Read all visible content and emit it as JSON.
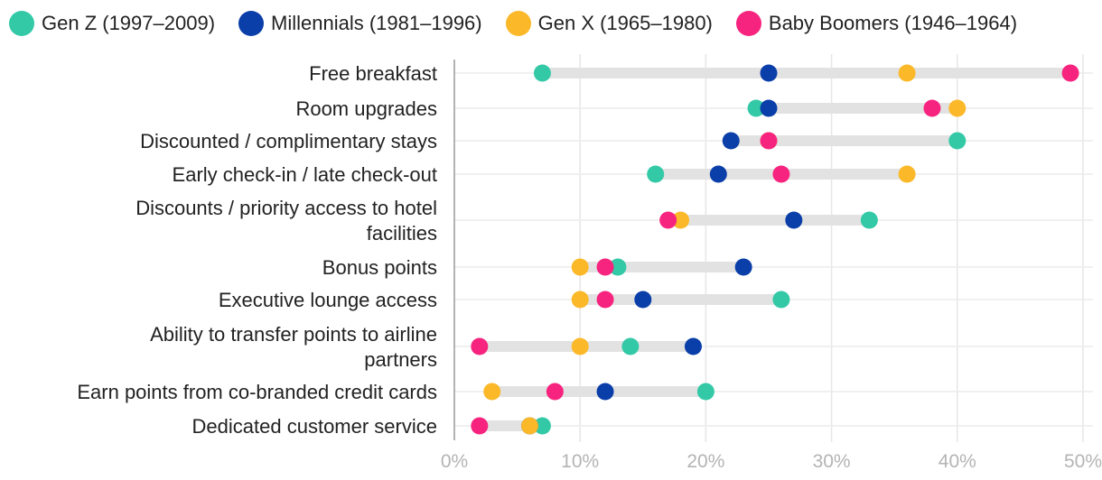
{
  "chart_data": {
    "type": "dot-range",
    "title": "",
    "xlabel": "",
    "ylabel": "",
    "xlim": [
      0,
      50
    ],
    "ticks": [
      0,
      10,
      20,
      30,
      40,
      50
    ],
    "tick_labels": [
      "0%",
      "10%",
      "20%",
      "30%",
      "40%",
      "50%"
    ],
    "grid": true,
    "legend_position": "top",
    "categories": [
      [
        "Free breakfast"
      ],
      [
        "Room upgrades"
      ],
      [
        "Discounted / complimentary stays"
      ],
      [
        "Early check-in / late check-out"
      ],
      [
        "Discounts / priority access to hotel",
        "facilities"
      ],
      [
        "Bonus points"
      ],
      [
        "Executive lounge access"
      ],
      [
        "Ability to transfer points to airline",
        "partners"
      ],
      [
        "Earn points from co-branded credit cards"
      ],
      [
        "Dedicated customer service"
      ]
    ],
    "series": [
      {
        "name": "Gen Z (1997–2009)",
        "color": "#33c9a7",
        "values": [
          7,
          24,
          40,
          16,
          33,
          13,
          26,
          14,
          20,
          7
        ]
      },
      {
        "name": "Millennials (1981–1996)",
        "color": "#0a3ea8",
        "values": [
          25,
          25,
          22,
          21,
          27,
          23,
          15,
          19,
          12,
          6
        ]
      },
      {
        "name": "Gen X (1965–1980)",
        "color": "#fbb829",
        "values": [
          36,
          40,
          25,
          36,
          18,
          10,
          10,
          10,
          3,
          6
        ]
      },
      {
        "name": "Baby Boomers (1946–1964)",
        "color": "#f7247f",
        "values": [
          49,
          38,
          25,
          26,
          17,
          12,
          12,
          2,
          8,
          2
        ]
      }
    ]
  }
}
